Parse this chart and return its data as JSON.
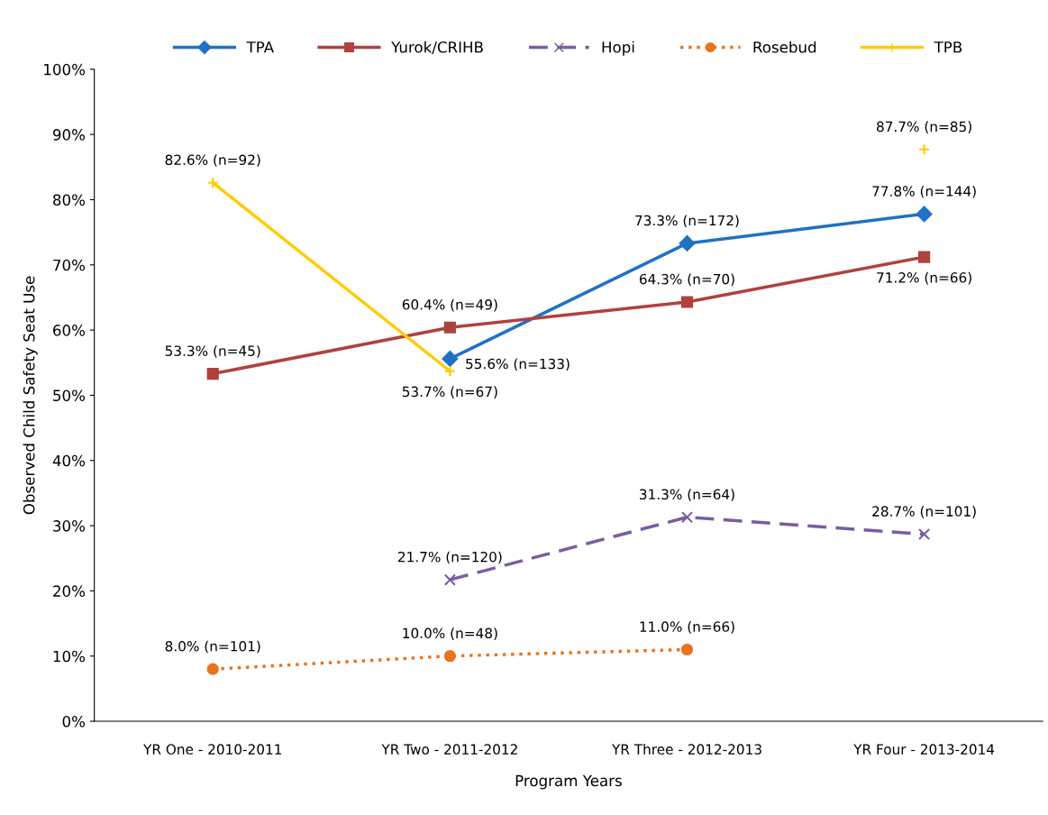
{
  "chart_data": {
    "type": "line",
    "xlabel": "Program Years",
    "ylabel": "Observed Child Safety Seat Use",
    "categories": [
      "YR One - 2010-2011",
      "YR Two - 2011-2012",
      "YR Three - 2012-2013",
      "YR Four - 2013-2014"
    ],
    "ylim": [
      0,
      100
    ],
    "yticks": [
      {
        "value": 0,
        "label": "0%"
      },
      {
        "value": 10,
        "label": "10%"
      },
      {
        "value": 20,
        "label": "20%"
      },
      {
        "value": 30,
        "label": "30%"
      },
      {
        "value": 40,
        "label": "40%"
      },
      {
        "value": 50,
        "label": "50%"
      },
      {
        "value": 60,
        "label": "60%"
      },
      {
        "value": 70,
        "label": "70%"
      },
      {
        "value": 80,
        "label": "80%"
      },
      {
        "value": 90,
        "label": "90%"
      },
      {
        "value": 100,
        "label": "100%"
      }
    ],
    "grid": false,
    "legend": "top",
    "series": [
      {
        "name": "TPA",
        "color": "#1f72c4",
        "marker": "diamond",
        "line_style": "solid",
        "values": [
          null,
          55.6,
          73.3,
          77.8
        ],
        "value_labels": [
          null,
          "55.6% (n=133)",
          "73.3% (n=172)",
          "77.8% (n=144)"
        ]
      },
      {
        "name": "Yurok/CRIHB",
        "color": "#b0413e",
        "marker": "square",
        "line_style": "solid",
        "values": [
          53.3,
          60.4,
          64.3,
          71.2
        ],
        "value_labels": [
          "53.3% (n=45)",
          "60.4% (n=49)",
          "64.3% (n=70)",
          "71.2% (n=66)"
        ]
      },
      {
        "name": "Hopi",
        "color": "#7a5ca4",
        "marker": "cross",
        "line_style": "dashed",
        "values": [
          null,
          21.7,
          31.3,
          28.7
        ],
        "value_labels": [
          null,
          "21.7% (n=120)",
          "31.3% (n=64)",
          "28.7% (n=101)"
        ]
      },
      {
        "name": "Rosebud",
        "color": "#e8741e",
        "marker": "circle",
        "line_style": "dotted",
        "values": [
          8.0,
          10.0,
          11.0,
          null
        ],
        "value_labels": [
          "8.0% (n=101)",
          "10.0% (n=48)",
          "11.0% (n=66)",
          null
        ]
      },
      {
        "name": "TPB",
        "color": "#ffcc00",
        "marker": "plus",
        "line_style": "solid",
        "values": [
          82.6,
          53.7,
          null,
          87.7
        ],
        "value_labels": [
          "82.6% (n=92)",
          "53.7% (n=67)",
          null,
          "87.7% (n=85)"
        ]
      }
    ]
  }
}
